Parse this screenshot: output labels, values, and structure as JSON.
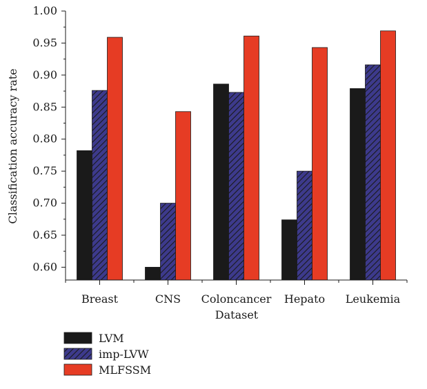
{
  "chart_data": {
    "type": "bar",
    "title": "",
    "xlabel": "Dataset",
    "ylabel": "Classification accuracy rate",
    "categories": [
      "Breast",
      "CNS",
      "Coloncancer",
      "Hepato",
      "Leukemia"
    ],
    "ylim": [
      0.58,
      1.0
    ],
    "yticks": [
      "0.60",
      "0.65",
      "0.70",
      "0.75",
      "0.80",
      "0.85",
      "0.90",
      "0.95",
      "1.00"
    ],
    "grid": false,
    "legend_position": "bottom-left",
    "series": [
      {
        "name": "LVM",
        "color": "#1a1a1a",
        "pattern": "solid",
        "values": [
          0.782,
          0.6,
          0.886,
          0.674,
          0.879
        ]
      },
      {
        "name": "imp-LVW",
        "color": "#3d3a8c",
        "pattern": "hatched",
        "values": [
          0.876,
          0.7,
          0.873,
          0.75,
          0.916
        ]
      },
      {
        "name": "MLFSSM",
        "color": "#e63c24",
        "pattern": "solid",
        "values": [
          0.959,
          0.843,
          0.961,
          0.943,
          0.969
        ]
      }
    ]
  }
}
